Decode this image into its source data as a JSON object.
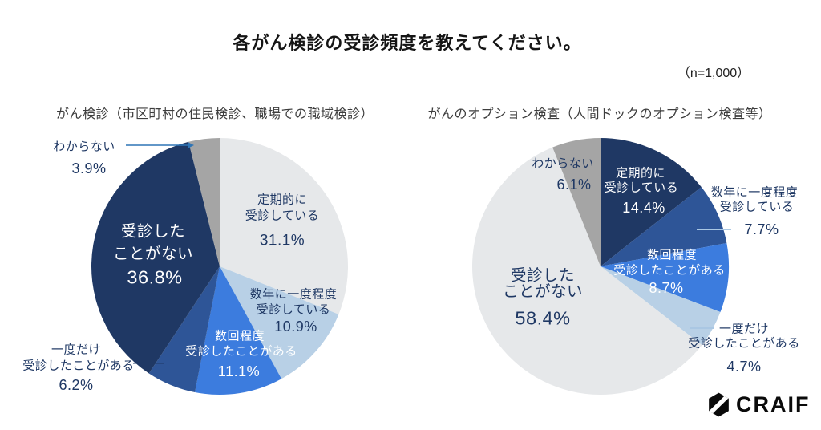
{
  "title": "各がん検診の受診頻度を教えてください。",
  "sample_size": "（n=1,000）",
  "logo": {
    "text": "CRAIF"
  },
  "colors": {
    "navy": "#1f3864",
    "medium_blue": "#2e5597",
    "bright_blue": "#3c7cde",
    "pale_blue": "#b8d0e6",
    "light_gray": "#e6e8ea",
    "gray": "#a5a5a5",
    "label_navy": "#1f3864",
    "leader_blue": "#2e75b6",
    "leader_light_blue": "#aac7e3"
  },
  "chart_data": [
    {
      "type": "pie",
      "title": "がん検診（市区町村の住民検診、職場での職域検診）",
      "unit": "%",
      "start_angle": "12-o'clock",
      "direction": "clockwise",
      "legend": "none (labels on chart with leader lines)",
      "slices": [
        {
          "name": "定期的に受診している",
          "label_lines": [
            "定期的に",
            "受診している"
          ],
          "value": 31.1,
          "color": "#e6e8ea",
          "text_color": "#1f3864"
        },
        {
          "name": "数年に一度程度受診している",
          "label_lines": [
            "数年に一度程度",
            "受診している"
          ],
          "value": 10.9,
          "color": "#b8d0e6",
          "text_color": "#1f3864"
        },
        {
          "name": "数回程度受診したことがある",
          "label_lines": [
            "数回程度",
            "受診したことがある"
          ],
          "value": 11.1,
          "color": "#3c7cde",
          "text_color": "#ffffff"
        },
        {
          "name": "一度だけ受診したことがある",
          "label_lines": [
            "一度だけ",
            "受診したことがある"
          ],
          "value": 6.2,
          "color": "#2e5597",
          "text_color": "#1f3864"
        },
        {
          "name": "受診したことがない",
          "label_lines": [
            "受診した",
            "ことがない"
          ],
          "value": 36.8,
          "color": "#1f3864",
          "text_color": "#ffffff"
        },
        {
          "name": "わからない",
          "label_lines": [
            "わからない"
          ],
          "value": 3.9,
          "color": "#a5a5a5",
          "text_color": "#1f3864"
        }
      ]
    },
    {
      "type": "pie",
      "title": "がんのオプション検査（人間ドックのオプション検査等）",
      "unit": "%",
      "start_angle": "12-o'clock",
      "direction": "clockwise",
      "legend": "none (labels on chart with leader lines)",
      "slices": [
        {
          "name": "定期的に受診している",
          "label_lines": [
            "定期的に",
            "受診している"
          ],
          "value": 14.4,
          "color": "#1f3864",
          "text_color": "#ffffff"
        },
        {
          "name": "数年に一度程度受診している",
          "label_lines": [
            "数年に一度程度",
            "受診している"
          ],
          "value": 7.7,
          "color": "#2e5597",
          "text_color": "#1f3864"
        },
        {
          "name": "数回程度受診したことがある",
          "label_lines": [
            "数回程度",
            "受診したことがある"
          ],
          "value": 8.7,
          "color": "#3c7cde",
          "text_color": "#ffffff"
        },
        {
          "name": "一度だけ受診したことがある",
          "label_lines": [
            "一度だけ",
            "受診したことがある"
          ],
          "value": 4.7,
          "color": "#b8d0e6",
          "text_color": "#1f3864"
        },
        {
          "name": "受診したことがない",
          "label_lines": [
            "受診した",
            "ことがない"
          ],
          "value": 58.4,
          "color": "#e6e8ea",
          "text_color": "#1f3864"
        },
        {
          "name": "わからない",
          "label_lines": [
            "わからない"
          ],
          "value": 6.1,
          "color": "#a5a5a5",
          "text_color": "#1f3864"
        }
      ]
    }
  ]
}
